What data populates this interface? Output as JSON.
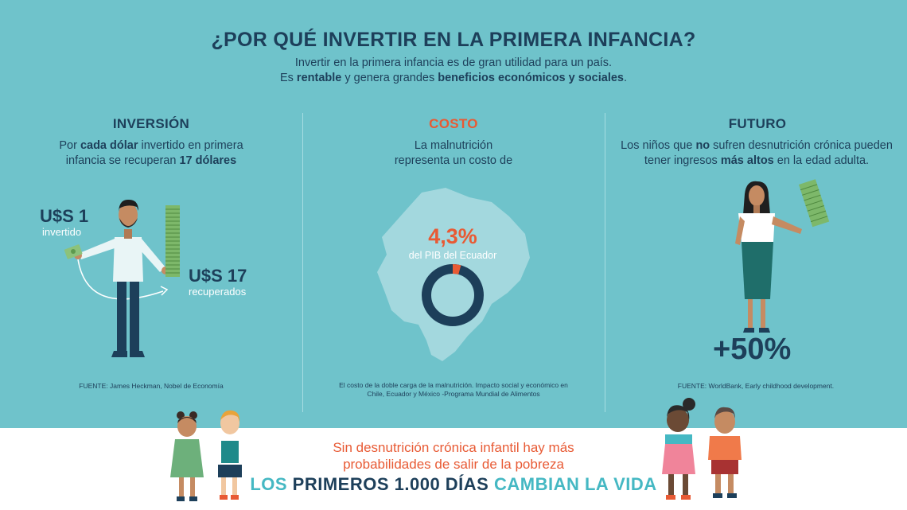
{
  "header": {
    "title": "¿POR QUÉ INVERTIR EN LA PRIMERA INFANCIA?",
    "subtitle_line1": "Invertir en la primera infancia es de gran utilidad para un país.",
    "subtitle_line2_pre": "Es ",
    "subtitle_line2_b1": "rentable",
    "subtitle_line2_mid": " y genera grandes ",
    "subtitle_line2_b2": "beneficios económicos y sociales",
    "subtitle_line2_post": "."
  },
  "inversion": {
    "title": "INVERSIÓN",
    "text1_pre": "Por ",
    "text1_b": "cada dólar",
    "text1_post": " invertido en primera",
    "text2_pre": "infancia se recuperan ",
    "text2_b": "17 dólares",
    "invested_amount": "U$S 1",
    "invested_label": "invertido",
    "recovered_amount": "U$S 17",
    "recovered_label": "recuperados",
    "source": "FUENTE: James Heckman, Nobel de Economía"
  },
  "costo": {
    "title": "COSTO",
    "text1": "La malnutrición",
    "text2": "representa un costo de",
    "percent": "4,3%",
    "percent_label": "del PIB del Ecuador",
    "percent_value": 4.3,
    "source1": "El costo de la doble carga de la malnutrición. Impacto social y económico en",
    "source2": "Chile, Ecuador y México -Programa Mundial de Alimentos"
  },
  "futuro": {
    "title": "FUTURO",
    "text1_pre": "Los niños que ",
    "text1_b": "no",
    "text1_post": " sufren desnutrición crónica pueden",
    "text2_pre": "tener ingresos ",
    "text2_b": "más altos",
    "text2_post": " en la edad adulta.",
    "gain": "+50%",
    "source": "FUENTE: WorldBank, Early childhood development."
  },
  "footer": {
    "line1": "Sin desnutrición crónica infantil hay más",
    "line2": "probabilidades de salir de la pobreza",
    "w1": "LOS",
    "w2": "PRIMEROS 1.000 DÍAS",
    "w3": "CAMBIAN LA VIDA"
  },
  "colors": {
    "background": "#6fc3cb",
    "navy": "#1d3f5a",
    "orange": "#e85a34",
    "teal": "#45b8c3"
  }
}
